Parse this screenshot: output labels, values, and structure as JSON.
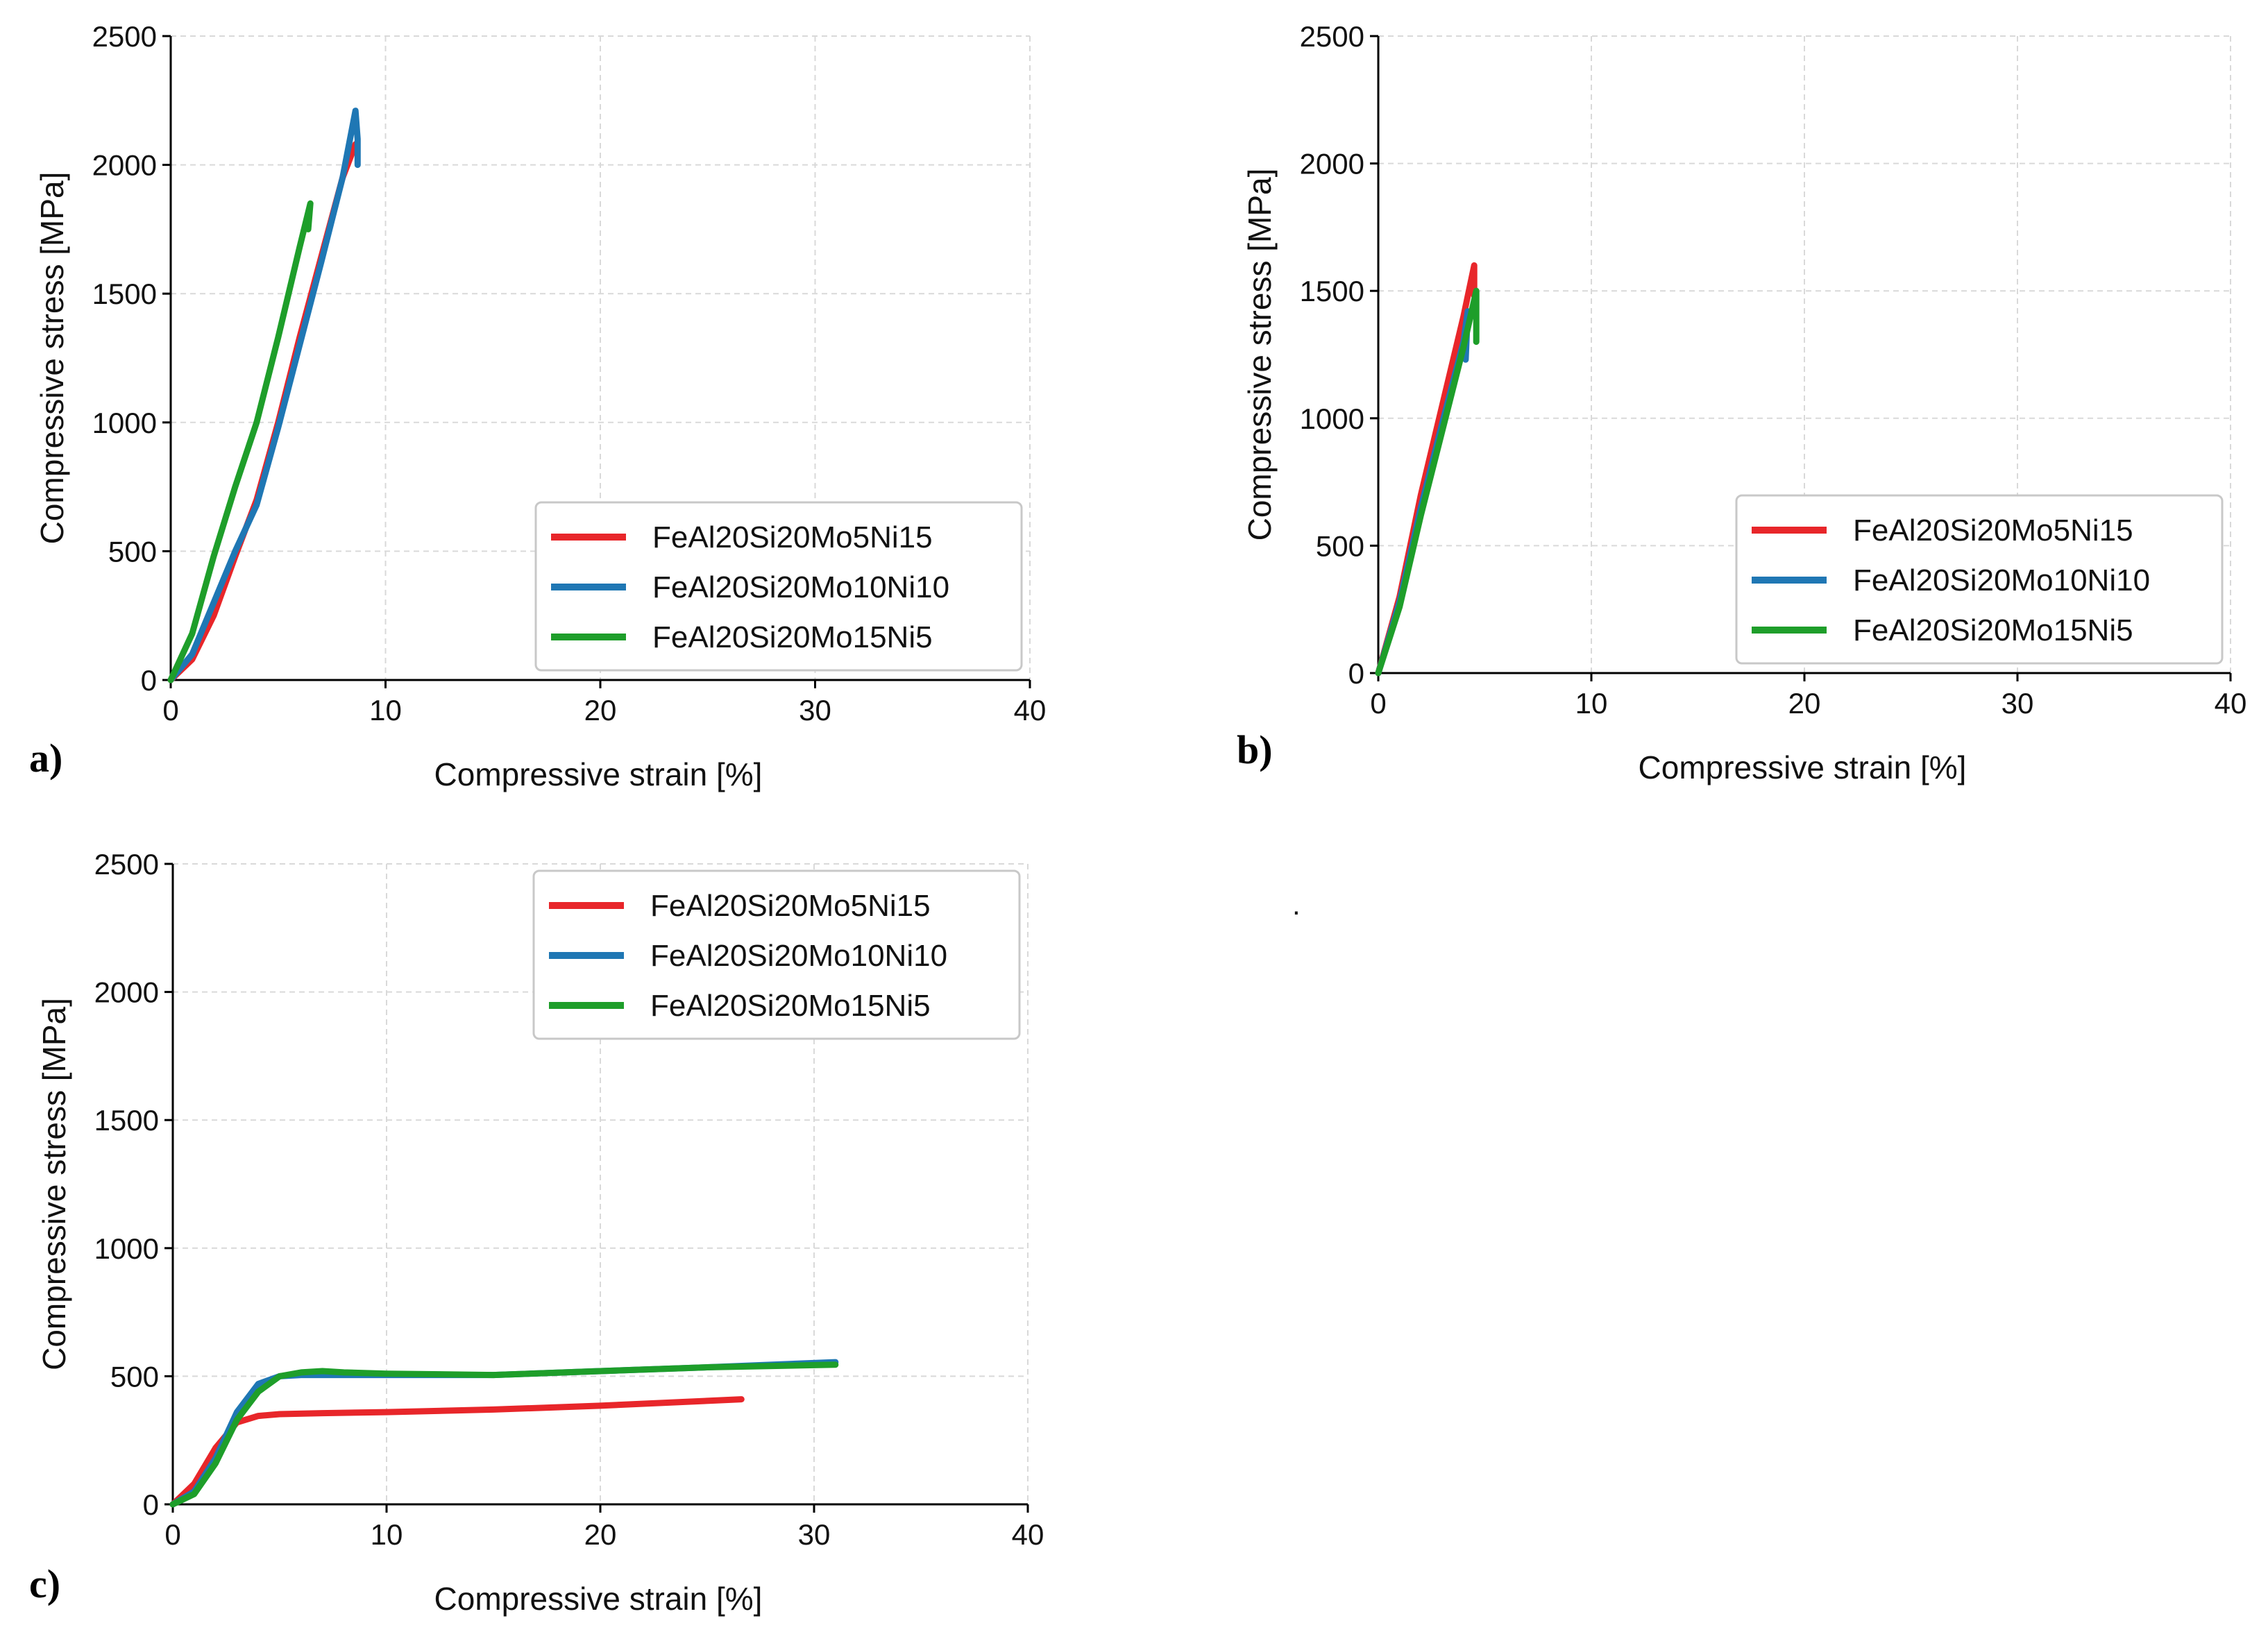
{
  "stray_mark": ".",
  "chart_data": [
    {
      "type": "line",
      "panel_label": "a)",
      "title": "",
      "xlabel": "Compressive strain [%]",
      "ylabel": "Compressive stress [MPa]",
      "xlim": [
        0,
        40
      ],
      "ylim": [
        0,
        2500
      ],
      "xticks": [
        0,
        10,
        20,
        30,
        40
      ],
      "yticks": [
        0,
        500,
        1000,
        1500,
        2000,
        2500
      ],
      "grid": true,
      "legend_position": "bottom-right",
      "series": [
        {
          "name": "FeAl20Si20Mo5Ni15",
          "color": "#e8262a",
          "x": [
            0,
            1,
            2,
            3,
            4,
            5,
            6,
            7,
            8,
            8.6
          ],
          "y": [
            0,
            80,
            250,
            480,
            700,
            1000,
            1330,
            1640,
            1950,
            2080
          ]
        },
        {
          "name": "FeAl20Si20Mo10Ni10",
          "color": "#1f77b4",
          "x": [
            0,
            1,
            2,
            3,
            4,
            5,
            6,
            7,
            8,
            8.6,
            8.7,
            8.7
          ],
          "y": [
            0,
            100,
            300,
            500,
            680,
            980,
            1300,
            1620,
            1950,
            2210,
            2100,
            2000
          ]
        },
        {
          "name": "FeAl20Si20Mo15Ni5",
          "color": "#1e9e2a",
          "x": [
            0,
            1,
            2,
            3,
            4,
            5,
            6,
            6.5,
            6.4,
            6.5
          ],
          "y": [
            0,
            180,
            480,
            750,
            1000,
            1330,
            1680,
            1850,
            1750,
            1850
          ]
        }
      ]
    },
    {
      "type": "line",
      "panel_label": "b)",
      "title": "",
      "xlabel": "Compressive strain [%]",
      "ylabel": "Compressive stress [MPa]",
      "xlim": [
        0,
        40
      ],
      "ylim": [
        0,
        2500
      ],
      "xticks": [
        0,
        10,
        20,
        30,
        40
      ],
      "yticks": [
        0,
        500,
        1000,
        1500,
        2000,
        2500
      ],
      "grid": true,
      "legend_position": "bottom-right",
      "series": [
        {
          "name": "FeAl20Si20Mo5Ni15",
          "color": "#e8262a",
          "x": [
            0,
            1,
            2,
            3,
            4,
            4.5,
            4.5
          ],
          "y": [
            0,
            300,
            700,
            1050,
            1400,
            1600,
            1480
          ]
        },
        {
          "name": "FeAl20Si20Mo10Ni10",
          "color": "#1f77b4",
          "x": [
            0,
            1,
            2,
            3,
            4,
            4.2,
            4.1
          ],
          "y": [
            0,
            280,
            650,
            980,
            1300,
            1420,
            1230
          ]
        },
        {
          "name": "FeAl20Si20Mo15Ni5",
          "color": "#1e9e2a",
          "x": [
            0,
            1,
            2,
            3,
            4,
            4.6,
            4.6
          ],
          "y": [
            0,
            260,
            620,
            950,
            1280,
            1500,
            1300
          ]
        }
      ]
    },
    {
      "type": "line",
      "panel_label": "c)",
      "title": "",
      "xlabel": "Compressive strain [%]",
      "ylabel": "Compressive stress [MPa]",
      "xlim": [
        0,
        40
      ],
      "ylim": [
        0,
        2500
      ],
      "xticks": [
        0,
        10,
        20,
        30,
        40
      ],
      "yticks": [
        0,
        500,
        1000,
        1500,
        2000,
        2500
      ],
      "grid": true,
      "legend_position": "top-right",
      "series": [
        {
          "name": "FeAl20Si20Mo5Ni15",
          "color": "#e8262a",
          "x": [
            0,
            1,
            2,
            3,
            4,
            5,
            7,
            10,
            15,
            20,
            26.6
          ],
          "y": [
            0,
            80,
            220,
            320,
            345,
            352,
            356,
            360,
            370,
            385,
            410
          ]
        },
        {
          "name": "FeAl20Si20Mo10Ni10",
          "color": "#1f77b4",
          "x": [
            0,
            1,
            2,
            3,
            4,
            5,
            6,
            8,
            10,
            15,
            20,
            25,
            31
          ],
          "y": [
            0,
            50,
            180,
            360,
            470,
            500,
            505,
            505,
            505,
            505,
            520,
            535,
            555
          ]
        },
        {
          "name": "FeAl20Si20Mo15Ni5",
          "color": "#1e9e2a",
          "x": [
            0,
            1,
            2,
            3,
            4,
            5,
            6,
            7,
            8,
            10,
            15,
            20,
            25,
            31
          ],
          "y": [
            0,
            40,
            160,
            330,
            440,
            500,
            515,
            520,
            515,
            510,
            505,
            520,
            535,
            545
          ]
        }
      ]
    }
  ]
}
